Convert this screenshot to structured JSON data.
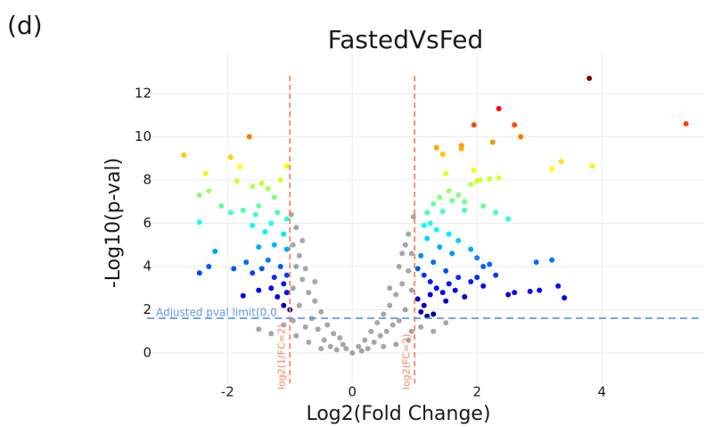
{
  "panel_label": "(d)",
  "chart_data": {
    "type": "scatter",
    "title": "FastedVsFed",
    "x_label": "Log2(Fold Change)",
    "y_label": "-Log10(p-val)",
    "xlim": [
      -3.29,
      5.64
    ],
    "ylim": [
      -1.4,
      13.85
    ],
    "xticks": [
      -2,
      0,
      2,
      4
    ],
    "yticks": [
      0,
      2,
      4,
      6,
      8,
      10,
      12
    ],
    "grid": true,
    "fc_thresholds": [
      -1,
      1
    ],
    "fc_color": "#f4845f",
    "fc_labels": [
      "log2(1/FC=2)",
      "log2(FC=2)"
    ],
    "pval_threshold": 1.61,
    "pval_color": "#6495ed",
    "pval_label": "Adjusted pval limit(0.0",
    "nonsig_color": "#808080",
    "colormap": "jet",
    "color_lim": [
      1.6,
      12.7
    ],
    "x": [
      3.8,
      5.35,
      2.35,
      1.95,
      2.6,
      2.7,
      3.35,
      3.2,
      3.85,
      2.25,
      1.35,
      1.45,
      1.75,
      1.75,
      1.5,
      1.95,
      2.0,
      1.9,
      2.05,
      2.2,
      2.35,
      1.8,
      1.7,
      1.55,
      1.6,
      1.4,
      1.2,
      1.3,
      2.1,
      2.3,
      2.5,
      1.45,
      1.8,
      1.25,
      1.35,
      1.55,
      1.15,
      1.7,
      1.9,
      2.0,
      2.1,
      1.6,
      1.4,
      1.2,
      1.1,
      1.3,
      1.5,
      1.7,
      1.9,
      2.1,
      1.05,
      1.15,
      1.25,
      1.35,
      1.45,
      1.55,
      1.65,
      1.8,
      1.05,
      1.15,
      1.25,
      1.1,
      1.3,
      1.5,
      1.2,
      2.5,
      2.6,
      2.85,
      3.0,
      3.2,
      2.95,
      3.3,
      3.4,
      2.0,
      2.2,
      2.3,
      -2.7,
      -1.65,
      -1.95,
      -2.35,
      -1.8,
      -1.05,
      -1.15,
      -1.45,
      -1.6,
      -2.3,
      -2.45,
      -1.85,
      -1.35,
      -1.25,
      -1.5,
      -1.75,
      -1.95,
      -2.1,
      -1.55,
      -1.2,
      -1.05,
      -1.3,
      -1.6,
      -1.1,
      -1.4,
      -2.45,
      -1.25,
      -1.05,
      -1.5,
      -1.7,
      -1.35,
      -1.15,
      -1.05,
      -1.25,
      -1.45,
      -1.1,
      -1.3,
      -1.05,
      -1.2,
      -1.1,
      -1.0,
      -1.5,
      -1.75,
      -2.3,
      -2.45,
      -2.2,
      -1.9,
      -1.6,
      0,
      0.1,
      -0.1,
      0.2,
      -0.2,
      0.3,
      -0.3,
      0.4,
      -0.4,
      0.5,
      -0.5,
      0.6,
      -0.6,
      0.7,
      -0.7,
      0.8,
      -0.8,
      0.9,
      -0.9,
      0.95,
      -0.95,
      0.9,
      -0.9,
      0.85,
      -0.85,
      0.98,
      -0.98,
      0.15,
      -0.15,
      0.35,
      -0.35,
      0.45,
      -0.45,
      0.55,
      -0.55,
      0.65,
      -0.65,
      0.75,
      -0.75,
      0.85,
      -0.85,
      0.95,
      -0.95,
      0.9,
      -0.9,
      0.7,
      -0.7,
      0.6,
      -0.6,
      0.75,
      -0.75,
      0.5,
      -0.5,
      0.25,
      -0.25,
      1.1,
      1.3,
      -1.1,
      -1.3,
      1.5,
      -1.5,
      0.95,
      -0.95,
      0.8,
      -0.8
    ],
    "values": [
      12.7,
      10.6,
      11.3,
      10.55,
      10.55,
      10.0,
      8.85,
      8.5,
      8.65,
      9.75,
      9.5,
      9.2,
      9.6,
      9.45,
      8.3,
      8.45,
      7.95,
      7.8,
      8.0,
      8.05,
      8.1,
      7.0,
      7.3,
      7.5,
      7.05,
      7.2,
      6.5,
      6.9,
      6.8,
      6.5,
      6.2,
      6.55,
      6.6,
      6.0,
      5.7,
      5.5,
      5.9,
      5.2,
      4.8,
      4.4,
      4.0,
      4.6,
      4.9,
      5.3,
      4.5,
      4.2,
      3.8,
      3.5,
      3.3,
      3.1,
      3.9,
      3.6,
      3.3,
      3.0,
      2.8,
      3.2,
      2.9,
      2.6,
      2.5,
      2.2,
      2.7,
      1.9,
      1.8,
      2.4,
      1.7,
      2.7,
      2.8,
      2.85,
      2.9,
      4.3,
      4.2,
      3.1,
      2.55,
      3.5,
      4.1,
      3.6,
      9.15,
      10.0,
      9.05,
      8.3,
      8.6,
      8.65,
      8.0,
      7.85,
      7.7,
      7.5,
      7.3,
      7.95,
      7.6,
      7.2,
      6.8,
      6.6,
      6.5,
      6.8,
      6.4,
      6.5,
      6.2,
      6.0,
      5.9,
      5.5,
      5.6,
      6.05,
      5.0,
      4.8,
      4.9,
      4.2,
      4.3,
      4.0,
      3.6,
      3.5,
      3.9,
      3.2,
      3.0,
      2.8,
      2.6,
      2.2,
      2.0,
      2.9,
      2.65,
      4.0,
      3.7,
      4.7,
      3.9,
      3.7,
      0,
      0.3,
      0.2,
      0.6,
      0.7,
      1.0,
      0.9,
      1.4,
      1.3,
      1.8,
      1.9,
      2.2,
      2.4,
      2.7,
      2.8,
      3.2,
      3.4,
      3.8,
      4.0,
      4.6,
      5.0,
      5.5,
      5.8,
      5.0,
      4.5,
      6.3,
      6.4,
      0.1,
      0.4,
      0.5,
      0.3,
      0.8,
      0.6,
      1.0,
      1.1,
      1.3,
      1.6,
      1.5,
      1.2,
      2.0,
      2.2,
      1.0,
      1.5,
      0.6,
      0.8,
      0.4,
      0.5,
      3.0,
      3.3,
      4.0,
      3.9,
      0.3,
      0.2,
      0.2,
      0.15,
      1.2,
      1.0,
      1.3,
      0.9,
      1.4,
      1.1,
      2.9,
      3.0,
      4.6,
      5.2
    ]
  }
}
